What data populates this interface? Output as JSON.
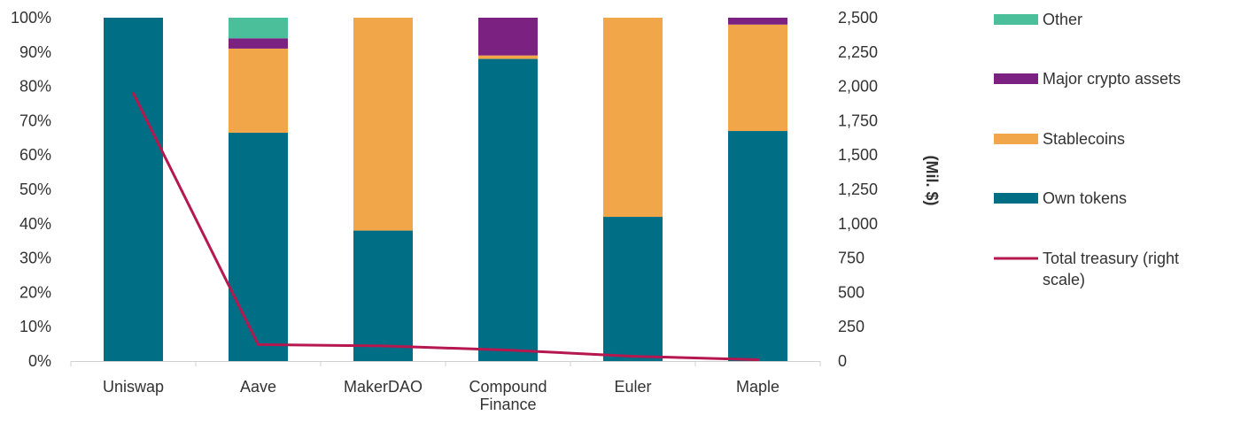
{
  "chart_data": {
    "type": "bar",
    "stacked": true,
    "categories": [
      "Uniswap",
      "Aave",
      "MakerDAO",
      "Compound Finance",
      "Euler",
      "Maple"
    ],
    "category_lines": [
      [
        "Uniswap"
      ],
      [
        "Aave"
      ],
      [
        "MakerDAO"
      ],
      [
        "Compound",
        "Finance"
      ],
      [
        "Euler"
      ],
      [
        "Maple"
      ]
    ],
    "series": [
      {
        "name": "Own tokens",
        "color": "#006f85",
        "values": [
          100,
          66.5,
          38,
          88,
          42,
          67
        ]
      },
      {
        "name": "Stablecoins",
        "color": "#f2a64a",
        "values": [
          0,
          24.5,
          62,
          1,
          58,
          31
        ]
      },
      {
        "name": "Major crypto assets",
        "color": "#7b2181",
        "values": [
          0,
          3,
          0,
          11,
          0,
          2
        ]
      },
      {
        "name": "Other",
        "color": "#4bbf9a",
        "values": [
          0,
          6,
          0,
          0,
          0,
          0
        ]
      }
    ],
    "line": {
      "name": "Total treasury (right scale)",
      "name_lines": [
        "Total treasury (right",
        "scale)"
      ],
      "color": "#b5174e",
      "values": [
        1950,
        120,
        110,
        80,
        35,
        10
      ]
    },
    "ylim": [
      0,
      100
    ],
    "y_ticks": [
      "0%",
      "10%",
      "20%",
      "30%",
      "40%",
      "50%",
      "60%",
      "70%",
      "80%",
      "90%",
      "100%"
    ],
    "y2lim": [
      0,
      2500
    ],
    "y2_ticks": [
      "0",
      "250",
      "500",
      "750",
      "1,000",
      "1,250",
      "1,500",
      "1,750",
      "2,000",
      "2,250",
      "2,500"
    ],
    "y2label": "(Mil. $)",
    "legend_order": [
      "Other",
      "Major crypto assets",
      "Stablecoins",
      "Own tokens",
      "Total treasury (right scale)"
    ],
    "legend_position": "right",
    "grid": false
  }
}
